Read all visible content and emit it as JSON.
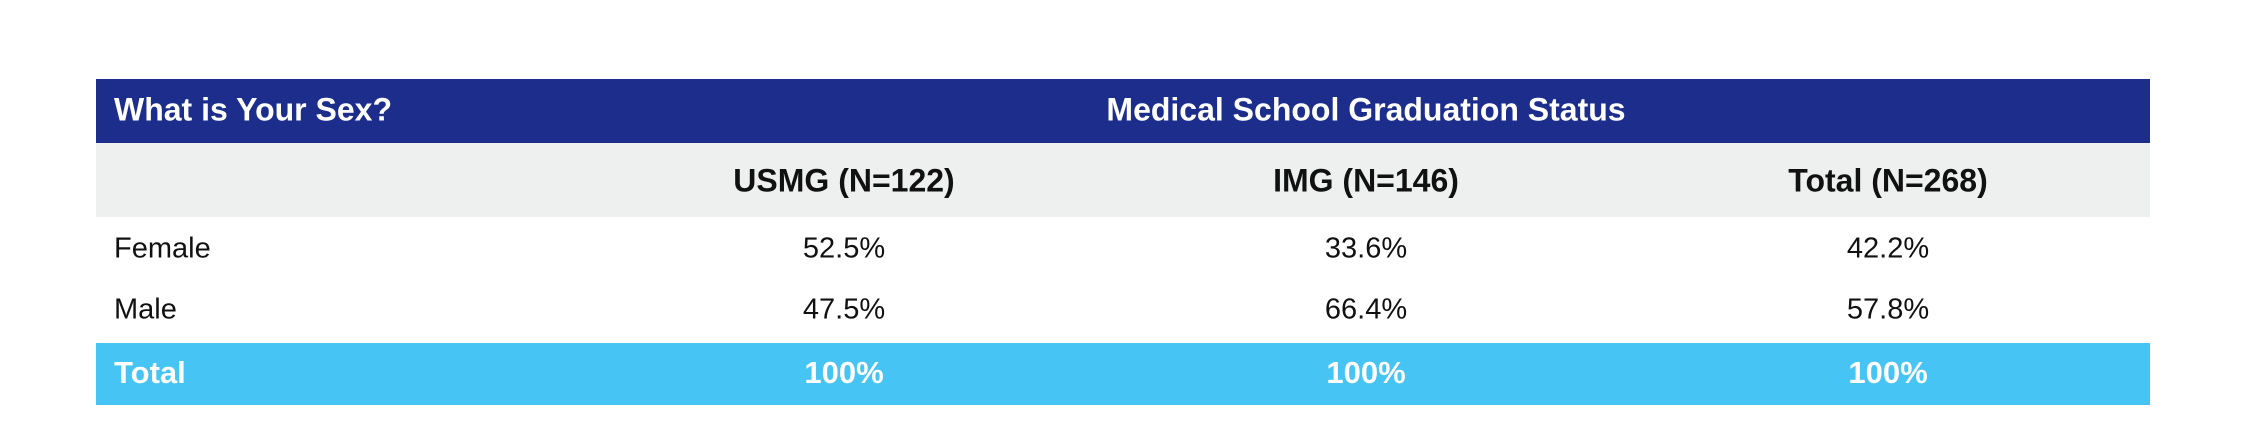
{
  "table": {
    "title": "What is Your Sex?",
    "group_header": "Medical School Graduation Status",
    "columns": [
      "USMG (N=122)",
      "IMG (N=146)",
      "Total (N=268)"
    ],
    "rows": [
      [
        "Female",
        "52.5%",
        "33.6%",
        "42.2%"
      ],
      [
        "Male",
        "47.5%",
        "66.4%",
        "57.8%"
      ]
    ],
    "total_row": [
      "Total",
      "100%",
      "100%",
      "100%"
    ]
  }
}
